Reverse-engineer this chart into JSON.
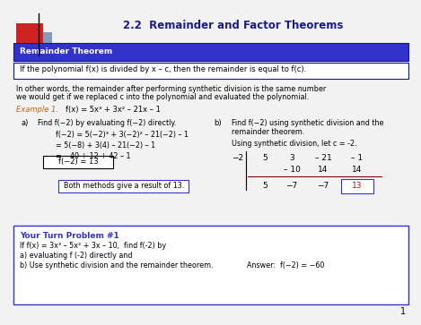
{
  "title": "2.2  Remainder and Factor Theorems",
  "title_fontsize": 8.5,
  "title_color": "#1a1a8c",
  "bg_color": "#f0f0f0",
  "header_bg": "#3333cc",
  "header_text_color": "#ffffff",
  "header_text": "Remainder Theorem",
  "theorem_box_text": "If the polynomial f(x) is divided by x – c, then the remainder is equal to f(c).",
  "paragraph1": "In other words, the remainder after performing synthetic division is the same number",
  "paragraph2": "we would get if we replaced c into the polynomial and evaluated the polynomial.",
  "example_label": "Example 1.",
  "example_func": "f(x) = 5x³ + 3x² – 21x – 1",
  "part_a_label": "a)",
  "part_a_desc": "Find f(−2) by evaluating f(−2) directly.",
  "part_a_line1": "f(−2) = 5(−2)³ + 3(−2)² – 21(−2) – 1",
  "part_a_line2": "= 5(−8) + 3(4) – 21(−2) – 1",
  "part_a_line3": "= −40 + 12 + 42 – 1",
  "part_a_result": "f(−2) = 13",
  "both_methods": "Both methods give a result of 13.",
  "part_b_label": "b)",
  "part_b_desc1": "Find f(−2) using synthetic division and the",
  "part_b_desc2": "remainder theorem.",
  "part_b_note": "Using synthetic division, let c = -2.",
  "synth_divisor": "−2",
  "synth_row1": [
    "5",
    "3",
    "– 21",
    "– 1"
  ],
  "synth_row2": [
    "– 10",
    "14",
    "14"
  ],
  "synth_row3": [
    "5",
    "−7",
    "−7",
    "13"
  ],
  "your_turn_title": "Your Turn Problem #1",
  "your_turn_line1": "If f(x) = 3x³ – 5x² + 3x – 10,  find f(-2) by",
  "your_turn_line2": "a) evaluating f (-2) directly and",
  "your_turn_line3": "b) Use synthetic division and the remainder theorem.",
  "your_turn_answer": "Answer:  f(−2) = −60",
  "page_num": "1",
  "example_color": "#cc6600",
  "your_turn_color": "#3333cc",
  "your_turn_border": "#3333cc",
  "red_color": "#cc0000"
}
